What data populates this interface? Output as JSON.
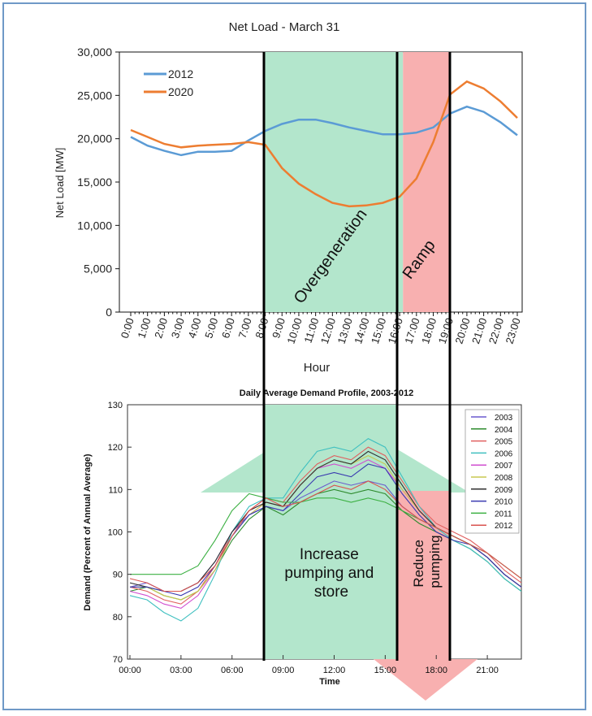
{
  "chart_data": [
    {
      "type": "line",
      "title": "Net Load - March 31",
      "xlabel": "Hour",
      "ylabel": "Net Load [MW]",
      "ylim": [
        0,
        30000
      ],
      "ytick_values": [
        0,
        5000,
        10000,
        15000,
        20000,
        25000,
        30000
      ],
      "ytick_labels": [
        "0",
        "5,000",
        "10,000",
        "15,000",
        "20,000",
        "25,000",
        "30,000"
      ],
      "categories": [
        "0:00",
        "1:00",
        "2:00",
        "3:00",
        "4:00",
        "5:00",
        "6:00",
        "7:00",
        "8:00",
        "9:00",
        "10:00",
        "11:00",
        "12:00",
        "13:00",
        "14:00",
        "15:00",
        "16:00",
        "17:00",
        "18:00",
        "19:00",
        "20:00",
        "21:00",
        "22:00",
        "23:00"
      ],
      "series": [
        {
          "name": "2012",
          "color": "#5b9bd5",
          "values": [
            20200,
            19200,
            18600,
            18100,
            18500,
            18500,
            18600,
            19800,
            20900,
            21700,
            22200,
            22200,
            21800,
            21300,
            20900,
            20500,
            20500,
            20700,
            21300,
            22900,
            23700,
            23100,
            21900,
            20400
          ]
        },
        {
          "name": "2020",
          "color": "#ed7d31",
          "values": [
            21000,
            20200,
            19400,
            19000,
            19200,
            19300,
            19400,
            19600,
            19300,
            16600,
            14800,
            13600,
            12600,
            12200,
            12300,
            12600,
            13300,
            15400,
            19600,
            25100,
            26600,
            25800,
            24300,
            22400
          ]
        }
      ],
      "legend_position": "top-left",
      "annotations": [
        {
          "label": "Overgeneration",
          "color": "#b3e6cc",
          "x_start": 8,
          "x_end": 16.2
        },
        {
          "label": "Ramp",
          "color": "#f8b0b0",
          "x_start": 16.2,
          "x_end": 19
        }
      ]
    },
    {
      "type": "line",
      "title": "Daily Average Demand Profile, 2003-2012",
      "xlabel": "Time",
      "ylabel": "Demand (Percent of Annual Average)",
      "ylim": [
        70,
        130
      ],
      "ytick_values": [
        70,
        80,
        90,
        100,
        110,
        120,
        130
      ],
      "xlim": [
        0,
        23
      ],
      "xtick_values": [
        0,
        3,
        6,
        9,
        12,
        15,
        18,
        21
      ],
      "xtick_labels": [
        "00:00",
        "03:00",
        "06:00",
        "09:00",
        "12:00",
        "15:00",
        "18:00",
        "21:00"
      ],
      "hours": [
        0,
        1,
        2,
        3,
        4,
        5,
        6,
        7,
        8,
        9,
        10,
        11,
        12,
        13,
        14,
        15,
        16,
        17,
        18,
        19,
        20,
        21,
        22,
        23
      ],
      "series": [
        {
          "name": "2003",
          "color": "#6a5acd",
          "values": [
            87,
            88,
            86,
            86,
            88,
            93,
            100,
            104,
            106,
            105,
            108,
            110,
            112,
            111,
            112,
            111,
            106,
            103,
            101,
            99,
            97,
            94,
            90,
            87
          ]
        },
        {
          "name": "2004",
          "color": "#2e8b2e",
          "values": [
            86,
            87,
            85,
            84,
            86,
            91,
            98,
            103,
            106,
            104,
            107,
            109,
            110,
            109,
            110,
            109,
            105,
            102,
            100,
            98,
            96,
            93,
            89,
            86
          ]
        },
        {
          "name": "2005",
          "color": "#e06060",
          "values": [
            87,
            86,
            84,
            83,
            86,
            92,
            100,
            105,
            108,
            107,
            112,
            116,
            118,
            117,
            120,
            118,
            112,
            106,
            102,
            100,
            98,
            95,
            91,
            88
          ]
        },
        {
          "name": "2006",
          "color": "#40c0c0",
          "values": [
            85,
            84,
            81,
            79,
            82,
            90,
            100,
            106,
            108,
            108,
            114,
            119,
            120,
            119,
            122,
            120,
            113,
            106,
            101,
            98,
            96,
            93,
            89,
            86
          ]
        },
        {
          "name": "2007",
          "color": "#d04fd0",
          "values": [
            86,
            85,
            83,
            82,
            85,
            91,
            99,
            104,
            107,
            106,
            111,
            115,
            116,
            115,
            117,
            115,
            110,
            105,
            101,
            99,
            97,
            94,
            90,
            87
          ]
        },
        {
          "name": "2008",
          "color": "#c8c850",
          "values": [
            87,
            87,
            85,
            84,
            86,
            91,
            99,
            104,
            107,
            106,
            111,
            115,
            117,
            116,
            118,
            116,
            110,
            105,
            101,
            99,
            97,
            94,
            90,
            87
          ]
        },
        {
          "name": "2009",
          "color": "#303030",
          "values": [
            88,
            87,
            86,
            86,
            88,
            93,
            100,
            105,
            107,
            106,
            111,
            115,
            117,
            116,
            119,
            117,
            111,
            105,
            101,
            99,
            97,
            94,
            90,
            87
          ]
        },
        {
          "name": "2010",
          "color": "#3a3ab0",
          "values": [
            87,
            87,
            86,
            85,
            87,
            92,
            99,
            104,
            106,
            105,
            109,
            113,
            114,
            113,
            116,
            115,
            109,
            104,
            100,
            98,
            97,
            94,
            90,
            87
          ]
        },
        {
          "name": "2011",
          "color": "#3cb043",
          "values": [
            90,
            90,
            90,
            90,
            92,
            98,
            105,
            109,
            108,
            107,
            107,
            108,
            108,
            107,
            108,
            107,
            105,
            103,
            101,
            99,
            97,
            95,
            92,
            89
          ]
        },
        {
          "name": "2012",
          "color": "#d9534f",
          "values": [
            89,
            88,
            86,
            86,
            88,
            92,
            99,
            105,
            108,
            106,
            107,
            109,
            111,
            110,
            112,
            110,
            106,
            103,
            101,
            99,
            97,
            95,
            92,
            89
          ]
        }
      ],
      "legend_position": "top-right",
      "annotations": [
        {
          "label": "Increase pumping and store",
          "color": "#b3e6cc"
        },
        {
          "label": "Reduce pumping",
          "color": "#f8b0b0"
        }
      ]
    }
  ]
}
